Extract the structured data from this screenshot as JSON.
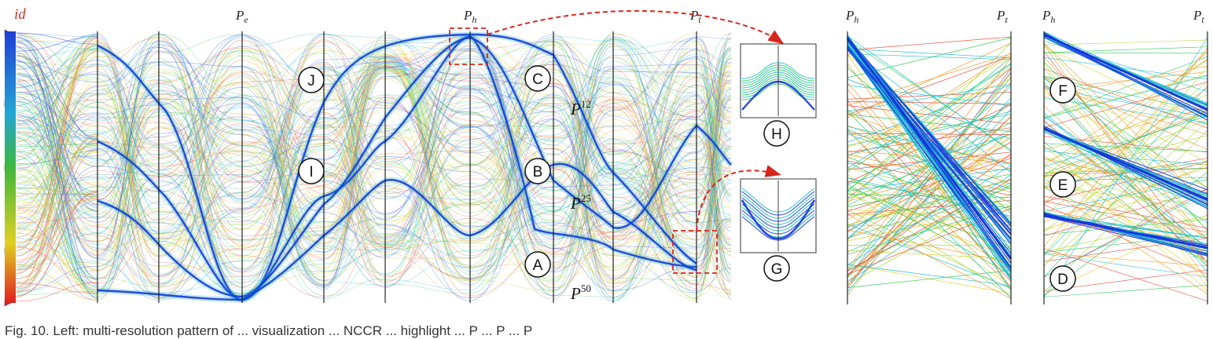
{
  "figure": {
    "id_label": "id",
    "main_axes": [
      "P_e",
      "P_h",
      "P_t"
    ],
    "panel_axes": [
      "P_h",
      "P_t"
    ],
    "markers": [
      "A",
      "B",
      "C",
      "D",
      "E",
      "F",
      "G",
      "H",
      "I",
      "J"
    ],
    "percentile_labels": [
      {
        "base": "P",
        "sup": "12"
      },
      {
        "base": "P",
        "sup": "25"
      },
      {
        "base": "P",
        "sup": "50"
      }
    ],
    "id_marker_colors": [
      "#1f3fd6",
      "#22a6d6",
      "#3cb83c",
      "#e0d020",
      "#e02020"
    ],
    "accent_color": "#d9261c",
    "line_palette": [
      "#1a3fe0",
      "#2a8ae8",
      "#20c0d0",
      "#38c858",
      "#a8d838",
      "#e8d030",
      "#f09a30",
      "#e85040"
    ]
  },
  "caption": {
    "text": "Fig. 10. Left: multi-resolution pattern of ... visualization ... NCCR ... highlight ... P  ... P  ... P"
  }
}
